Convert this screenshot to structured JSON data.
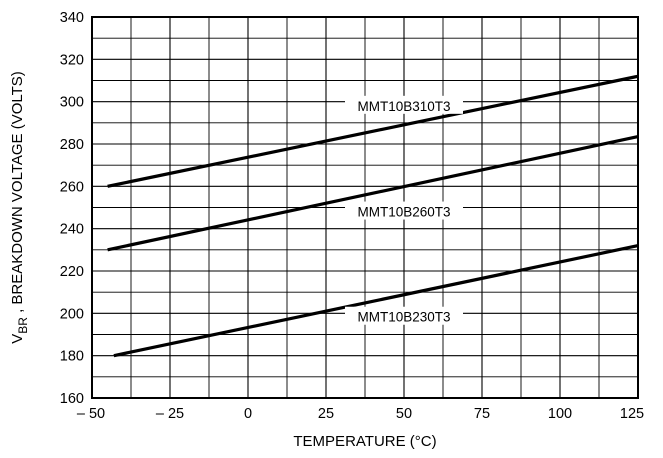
{
  "chart_data": {
    "type": "line",
    "xlabel": "TEMPERATURE (°C)",
    "ylabel_main": "V",
    "ylabel_sub": "BR",
    "ylabel_rest": " , BREAKDOWN VOLTAGE (VOLTS)",
    "xlim": [
      -50,
      125
    ],
    "ylim": [
      160,
      340
    ],
    "x_ticks": [
      -50,
      -25,
      0,
      25,
      50,
      75,
      100,
      125
    ],
    "x_tick_labels": [
      "– 50",
      "– 25",
      "0",
      "25",
      "50",
      "75",
      "100",
      "125"
    ],
    "y_ticks": [
      160,
      180,
      200,
      220,
      240,
      260,
      280,
      300,
      320,
      340
    ],
    "y_tick_labels": [
      "160",
      "180",
      "200",
      "220",
      "240",
      "260",
      "280",
      "300",
      "320",
      "340"
    ],
    "x_minor_step": 12.5,
    "y_minor_step": 10,
    "grid": true,
    "series": [
      {
        "name": "MMT10B310T3",
        "x": [
          -45,
          125
        ],
        "y": [
          260,
          312
        ],
        "label_x": 50
      },
      {
        "name": "MMT10B260T3",
        "x": [
          -45,
          125
        ],
        "y": [
          230,
          283.5
        ],
        "label_x": 50
      },
      {
        "name": "MMT10B230T3",
        "x": [
          -43,
          125
        ],
        "y": [
          180,
          232
        ],
        "label_x": 50
      }
    ]
  }
}
